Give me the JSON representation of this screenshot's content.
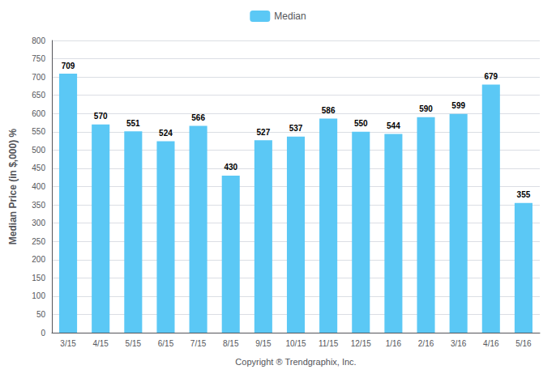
{
  "chart_data": {
    "type": "bar",
    "categories": [
      "3/15",
      "4/15",
      "5/15",
      "6/15",
      "7/15",
      "8/15",
      "9/15",
      "10/15",
      "11/15",
      "12/15",
      "1/16",
      "2/16",
      "3/16",
      "4/16",
      "5/16"
    ],
    "series": [
      {
        "name": "Median",
        "color": "#5BC8F5",
        "values": [
          709,
          570,
          551,
          524,
          566,
          430,
          527,
          537,
          586,
          550,
          544,
          590,
          599,
          679,
          355
        ]
      }
    ],
    "xlabel": "Copyright ® Trendgraphix, Inc.",
    "ylabel": "Median Price (in $,000) %",
    "ylim": [
      0,
      800
    ],
    "yticks": [
      0,
      50,
      100,
      150,
      200,
      250,
      300,
      350,
      400,
      450,
      500,
      550,
      600,
      650,
      700,
      750,
      800
    ],
    "grid": true,
    "legend": "top",
    "data_labels": true
  }
}
